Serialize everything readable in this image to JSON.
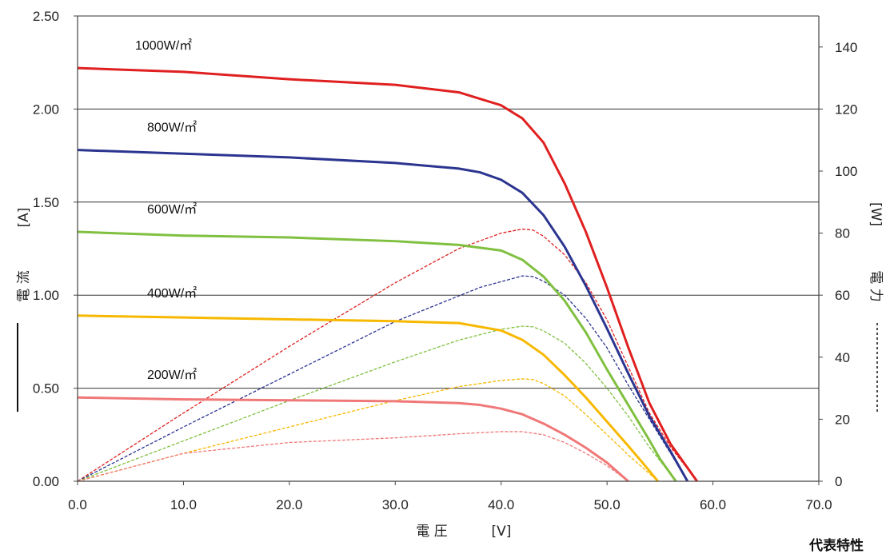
{
  "chart_data": {
    "type": "line",
    "caption": "代表特性",
    "xlabel": {
      "text": "電 圧",
      "unit": "[V]"
    },
    "ylabel_left": {
      "text": "電 流",
      "unit": "[A]",
      "marker": "solid"
    },
    "ylabel_right": {
      "text": "電 力",
      "unit": "[W]",
      "marker": "dashed"
    },
    "xlim": [
      0,
      70
    ],
    "ylim_left": [
      0,
      2.5
    ],
    "ylim_right": [
      0,
      150
    ],
    "x_ticks": [
      "0.0",
      "10.0",
      "20.0",
      "30.0",
      "40.0",
      "50.0",
      "60.0",
      "70.0"
    ],
    "y_left_ticks": [
      "0.00",
      "0.50",
      "1.00",
      "1.50",
      "2.00",
      "2.50"
    ],
    "y_right_ticks": [
      "0",
      "20",
      "40",
      "60",
      "80",
      "100",
      "120",
      "140"
    ],
    "gridlines": "horizontal",
    "series": [
      {
        "name": "1000W/㎡",
        "color": "#e02020",
        "current": [
          [
            0,
            2.22
          ],
          [
            10,
            2.2
          ],
          [
            20,
            2.16
          ],
          [
            30,
            2.13
          ],
          [
            36,
            2.09
          ],
          [
            40,
            2.02
          ],
          [
            42,
            1.95
          ],
          [
            44,
            1.82
          ],
          [
            46,
            1.6
          ],
          [
            48,
            1.34
          ],
          [
            50,
            1.04
          ],
          [
            52,
            0.72
          ],
          [
            54,
            0.42
          ],
          [
            56,
            0.2
          ],
          [
            58.5,
            0
          ]
        ],
        "power": [
          [
            0,
            0
          ],
          [
            10,
            22
          ],
          [
            20,
            43.5
          ],
          [
            30,
            64
          ],
          [
            36,
            75
          ],
          [
            40,
            80
          ],
          [
            42,
            81.3
          ],
          [
            43,
            81
          ],
          [
            44,
            79
          ],
          [
            46,
            73
          ],
          [
            48,
            64
          ],
          [
            50,
            52
          ],
          [
            52,
            37
          ],
          [
            54,
            22
          ],
          [
            56,
            11
          ],
          [
            58.5,
            0
          ]
        ]
      },
      {
        "name": "800W/㎡",
        "color": "#2b3590",
        "current": [
          [
            0,
            1.78
          ],
          [
            10,
            1.76
          ],
          [
            20,
            1.74
          ],
          [
            30,
            1.71
          ],
          [
            36,
            1.68
          ],
          [
            38,
            1.66
          ],
          [
            40,
            1.62
          ],
          [
            42,
            1.55
          ],
          [
            44,
            1.43
          ],
          [
            46,
            1.26
          ],
          [
            48,
            1.05
          ],
          [
            50,
            0.82
          ],
          [
            52,
            0.58
          ],
          [
            54,
            0.35
          ],
          [
            56,
            0.16
          ],
          [
            57.6,
            0
          ]
        ],
        "power": [
          [
            0,
            0
          ],
          [
            10,
            17.5
          ],
          [
            20,
            34.5
          ],
          [
            30,
            51.5
          ],
          [
            38,
            62.5
          ],
          [
            42,
            66.2
          ],
          [
            43,
            66
          ],
          [
            44,
            64.5
          ],
          [
            46,
            60
          ],
          [
            48,
            52.5
          ],
          [
            50,
            43
          ],
          [
            52,
            31
          ],
          [
            54,
            20
          ],
          [
            56,
            9
          ],
          [
            57.6,
            0
          ]
        ]
      },
      {
        "name": "600W/㎡",
        "color": "#80c040",
        "current": [
          [
            0,
            1.34
          ],
          [
            10,
            1.32
          ],
          [
            20,
            1.31
          ],
          [
            30,
            1.29
          ],
          [
            36,
            1.27
          ],
          [
            40,
            1.24
          ],
          [
            42,
            1.19
          ],
          [
            44,
            1.1
          ],
          [
            46,
            0.97
          ],
          [
            48,
            0.8
          ],
          [
            50,
            0.6
          ],
          [
            52,
            0.41
          ],
          [
            54,
            0.22
          ],
          [
            55,
            0.12
          ],
          [
            56.5,
            0
          ]
        ],
        "power": [
          [
            0,
            0
          ],
          [
            10,
            13
          ],
          [
            20,
            26
          ],
          [
            30,
            38.5
          ],
          [
            36,
            45.5
          ],
          [
            40,
            49
          ],
          [
            42,
            50
          ],
          [
            43,
            49.8
          ],
          [
            44,
            48.5
          ],
          [
            46,
            44.5
          ],
          [
            48,
            38
          ],
          [
            50,
            30
          ],
          [
            52,
            21
          ],
          [
            54,
            11
          ],
          [
            56.5,
            0
          ]
        ]
      },
      {
        "name": "400W/㎡",
        "color": "#f7b800",
        "current": [
          [
            0,
            0.89
          ],
          [
            10,
            0.88
          ],
          [
            20,
            0.87
          ],
          [
            30,
            0.86
          ],
          [
            36,
            0.85
          ],
          [
            40,
            0.81
          ],
          [
            42,
            0.76
          ],
          [
            44,
            0.68
          ],
          [
            46,
            0.57
          ],
          [
            48,
            0.45
          ],
          [
            50,
            0.32
          ],
          [
            52,
            0.19
          ],
          [
            53.5,
            0.09
          ],
          [
            54.8,
            0
          ]
        ],
        "power": [
          [
            0,
            0
          ],
          [
            10,
            9
          ],
          [
            20,
            17.5
          ],
          [
            30,
            26
          ],
          [
            36,
            30.5
          ],
          [
            40,
            32.5
          ],
          [
            42,
            33
          ],
          [
            43,
            32.8
          ],
          [
            44,
            31.5
          ],
          [
            46,
            27.5
          ],
          [
            48,
            21.5
          ],
          [
            50,
            15
          ],
          [
            52,
            8.5
          ],
          [
            54.8,
            0
          ]
        ]
      },
      {
        "name": "200W/㎡",
        "color": "#f07878",
        "current": [
          [
            0,
            0.45
          ],
          [
            10,
            0.44
          ],
          [
            20,
            0.435
          ],
          [
            30,
            0.43
          ],
          [
            36,
            0.42
          ],
          [
            38,
            0.41
          ],
          [
            40,
            0.39
          ],
          [
            42,
            0.36
          ],
          [
            44,
            0.31
          ],
          [
            46,
            0.25
          ],
          [
            48,
            0.18
          ],
          [
            50,
            0.1
          ],
          [
            51,
            0.05
          ],
          [
            52,
            0
          ]
        ],
        "power": [
          [
            0,
            0
          ],
          [
            10,
            9
          ],
          [
            20,
            12.5
          ],
          [
            30,
            14
          ],
          [
            36,
            15.3
          ],
          [
            40,
            16
          ],
          [
            42,
            16
          ],
          [
            43,
            15.5
          ],
          [
            44,
            15
          ],
          [
            46,
            12.5
          ],
          [
            48,
            9
          ],
          [
            50,
            5
          ],
          [
            52,
            0
          ]
        ]
      }
    ]
  }
}
